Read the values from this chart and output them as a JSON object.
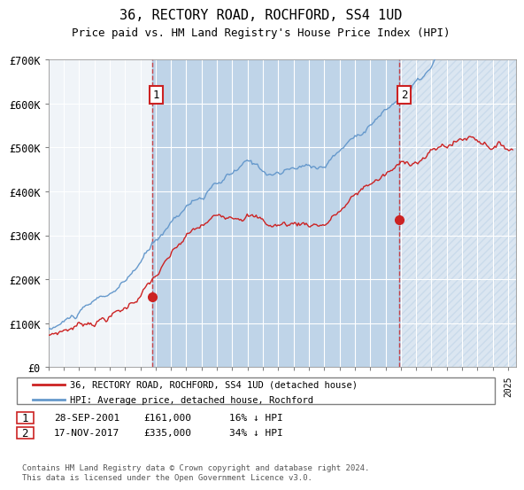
{
  "title": "36, RECTORY ROAD, ROCHFORD, SS4 1UD",
  "subtitle": "Price paid vs. HM Land Registry's House Price Index (HPI)",
  "sale1_date": "28-SEP-2001",
  "sale1_price": 161000,
  "sale1_label": "16% ↓ HPI",
  "sale1_x": 2001.74,
  "sale2_date": "17-NOV-2017",
  "sale2_price": 335000,
  "sale2_label": "34% ↓ HPI",
  "sale2_x": 2017.88,
  "legend_line1": "36, RECTORY ROAD, ROCHFORD, SS4 1UD (detached house)",
  "legend_line2": "HPI: Average price, detached house, Rochford",
  "footnote": "Contains HM Land Registry data © Crown copyright and database right 2024.\nThis data is licensed under the Open Government Licence v3.0.",
  "hpi_color": "#6699cc",
  "price_color": "#cc2222",
  "bg_color": "#dce9f5",
  "plot_bg": "#f0f4f8",
  "ylim": [
    0,
    700000
  ],
  "xlim_start": 1995.0,
  "xlim_end": 2025.5
}
